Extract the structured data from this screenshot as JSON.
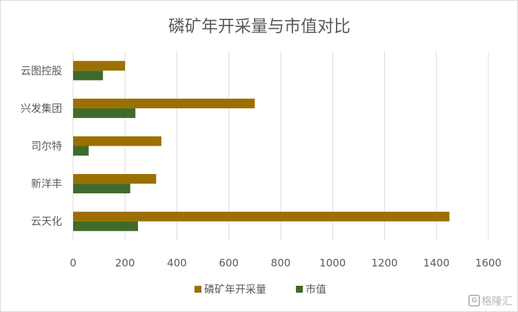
{
  "chart_data": {
    "type": "bar",
    "orientation": "horizontal",
    "title": "磷矿年开采量与市值对比",
    "categories": [
      "云天化",
      "新洋丰",
      "司尔特",
      "兴发集团",
      "云图控股"
    ],
    "series": [
      {
        "name": "磷矿年开采量",
        "values": [
          1450,
          320,
          340,
          700,
          200
        ],
        "color": "#9c7000"
      },
      {
        "name": "市值",
        "values": [
          250,
          220,
          60,
          240,
          115
        ],
        "color": "#3e6b2b"
      }
    ],
    "xlim": [
      0,
      1600
    ],
    "xticks": [
      "0",
      "200",
      "400",
      "600",
      "800",
      "1000",
      "1200",
      "1400",
      "1600"
    ],
    "grid": true,
    "legend": "bottom"
  },
  "watermark": {
    "text": "格隆汇",
    "icon": "G"
  }
}
